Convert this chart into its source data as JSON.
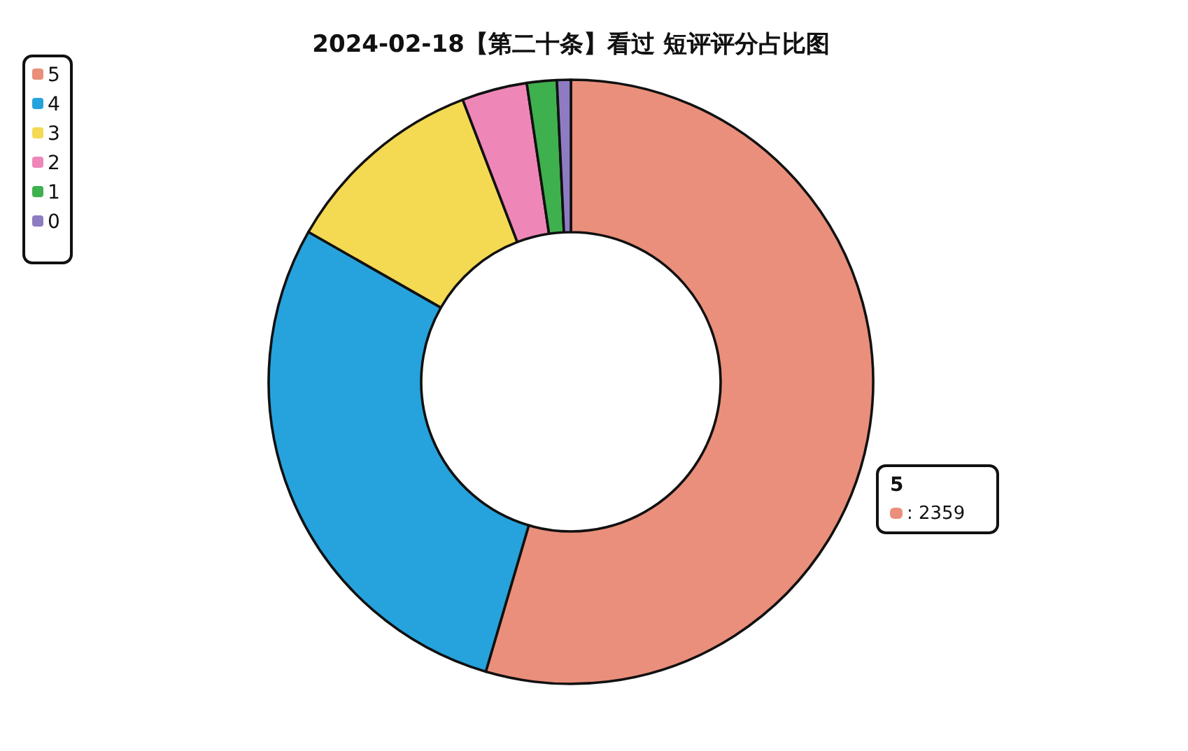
{
  "chart_data": {
    "type": "donut",
    "title": "2024-02-18【第二十条】看过 短评评分占比图",
    "categories": [
      "5",
      "4",
      "3",
      "2",
      "1",
      "0"
    ],
    "values": [
      2359,
      1242,
      472,
      151,
      69,
      32
    ],
    "colors": [
      "#ea8f7b",
      "#26a3dd",
      "#f3da52",
      "#ee87b8",
      "#3fb04e",
      "#8e7cc3"
    ],
    "value_labels": [
      ": 2359",
      null,
      null,
      null,
      null,
      null
    ],
    "legend": "top left"
  }
}
